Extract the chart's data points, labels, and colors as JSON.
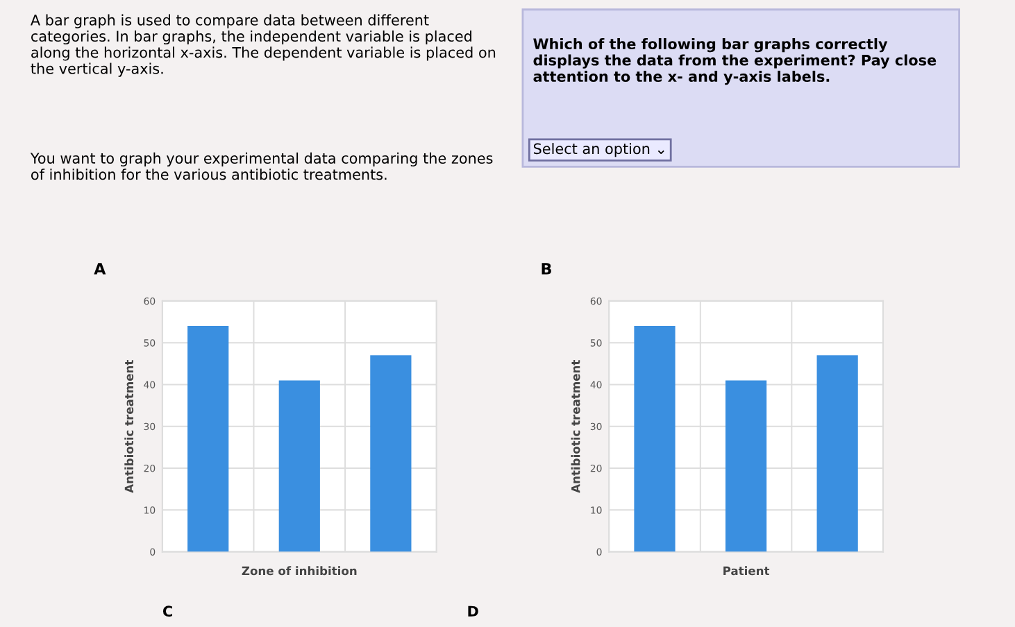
{
  "chart_data": [
    {
      "type": "other",
      "annotations": [
        "A bar graph is used to compare data between different categories. In bar graphs, the independent variable is placed along the horizontal x-axis. The dependent variable is placed on the vertical y-axis.",
        "You want to graph your experimental data comparing the zones of inhibition for the various antibiotic treatments.",
        "Which of the following bar graphs correctly displays the data from the experiment? Pay close attention to the x- and y-axis labels.",
        "Select an option ⌄",
        "C",
        "D"
      ]
    },
    {
      "type": "bar",
      "title": "A",
      "xlabel": "Zone of inhibition",
      "ylabel": "Antibiotic treatment",
      "categories": [
        null,
        null,
        null
      ],
      "values": [
        54,
        41,
        47
      ],
      "color": "#3a8fe0",
      "ylim": [
        0,
        60
      ],
      "yticks": [
        0,
        10,
        20,
        30,
        40,
        50,
        60
      ],
      "grid": true
    },
    {
      "type": "bar",
      "title": "B",
      "xlabel": "Patient",
      "ylabel": "Antibiotic treatment",
      "categories": [
        null,
        null,
        null
      ],
      "values": [
        54,
        41,
        47
      ],
      "color": "#3a8fe0",
      "ylim": [
        0,
        60
      ],
      "yticks": [
        0,
        10,
        20,
        30,
        40,
        50,
        60
      ],
      "grid": true
    }
  ]
}
